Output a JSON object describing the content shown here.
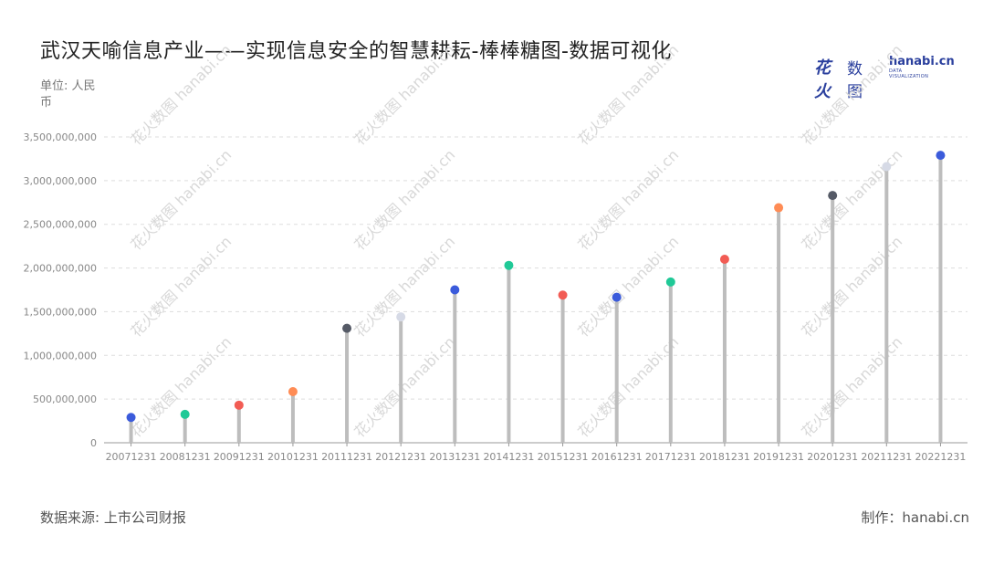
{
  "header": {
    "title": "武汉天喻信息产业——实现信息安全的智慧耕耘-棒棒糖图-数据可视化",
    "unit_label": "单位: 人民币"
  },
  "logo": {
    "mark": "花火",
    "cn": "数图",
    "en": "hanabi.cn",
    "sub": "DATA VISUALIZATION"
  },
  "footer": {
    "source": "数据来源: 上市公司财报",
    "credit": "制作：hanabi.cn"
  },
  "watermark": {
    "text": "花火数图 hanabi.cn"
  },
  "colors": {
    "stick": "#bdbdbd",
    "grid": "#dddddd",
    "blue": "#3b5bdb",
    "green": "#20c997",
    "red": "#f25c54",
    "orange": "#ff8c55",
    "dark": "#555a66",
    "light": "#d6dae6"
  },
  "chart_data": {
    "type": "lollipop",
    "categories": [
      "20071231",
      "20081231",
      "20091231",
      "20101231",
      "20111231",
      "20121231",
      "20131231",
      "20141231",
      "20151231",
      "20161231",
      "20171231",
      "20181231",
      "20191231",
      "20201231",
      "20211231",
      "20221231"
    ],
    "values": [
      290000000,
      325000000,
      430000000,
      585000000,
      1310000000,
      1440000000,
      1750000000,
      2030000000,
      1690000000,
      1665000000,
      1840000000,
      2100000000,
      2690000000,
      2830000000,
      3160000000,
      3290000000
    ],
    "point_colors": [
      "blue",
      "green",
      "red",
      "orange",
      "dark",
      "light",
      "blue",
      "green",
      "red",
      "blue",
      "green",
      "red",
      "orange",
      "dark",
      "light",
      "blue"
    ],
    "yticks": [
      0,
      500000000,
      1000000000,
      1500000000,
      2000000000,
      2500000000,
      3000000000,
      3500000000
    ],
    "ytick_labels": [
      "0",
      "500,000,000",
      "1,000,000,000",
      "1,500,000,000",
      "2,000,000,000",
      "2,500,000,000",
      "3,000,000,000",
      "3,500,000,000"
    ],
    "ylim": [
      0,
      3500000000
    ],
    "grid": true
  }
}
